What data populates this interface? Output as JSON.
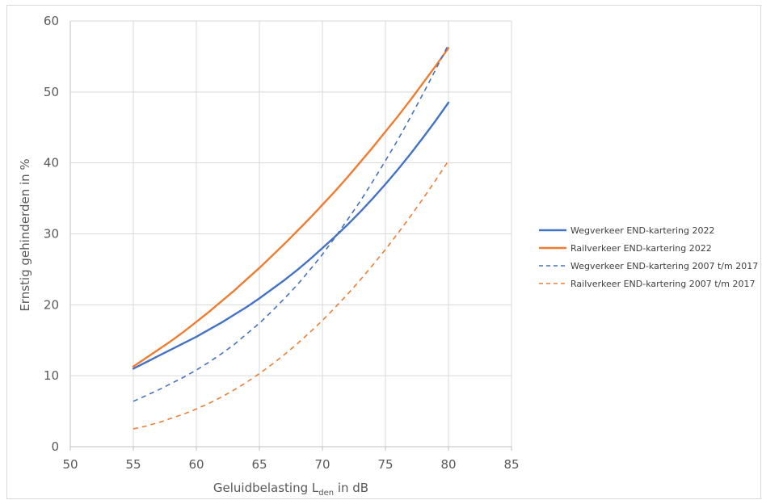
{
  "chart_data": {
    "type": "line",
    "title": "",
    "xlabel": {
      "main": "Geluidbelasting L",
      "subscript": "den",
      "suffix": " in dB"
    },
    "ylabel": "Ernstig gehinderden in %",
    "xlim": [
      50,
      85
    ],
    "ylim": [
      0,
      60
    ],
    "xticks": [
      50,
      55,
      60,
      65,
      70,
      75,
      80,
      85
    ],
    "yticks": [
      0,
      10,
      20,
      30,
      40,
      50,
      60
    ],
    "grid": "vertical-and-horizontal",
    "legend_position": "right",
    "x": [
      55,
      56,
      57,
      58,
      59,
      60,
      61,
      62,
      63,
      64,
      65,
      66,
      67,
      68,
      69,
      70,
      71,
      72,
      73,
      74,
      75,
      76,
      77,
      78,
      79,
      80
    ],
    "series": [
      {
        "name": "Wegverkeer END-kartering 2022",
        "color": "#4472c4",
        "dash": "solid",
        "values": [
          11.0,
          11.9,
          12.8,
          13.7,
          14.6,
          15.5,
          16.5,
          17.5,
          18.6,
          19.7,
          20.9,
          22.2,
          23.5,
          24.9,
          26.4,
          28.0,
          29.6,
          31.3,
          33.1,
          35.0,
          37.0,
          39.1,
          41.3,
          43.6,
          46.0,
          48.5
        ]
      },
      {
        "name": "Railverkeer END-kartering 2022",
        "color": "#ed7d31",
        "dash": "solid",
        "values": [
          11.3,
          12.5,
          13.7,
          14.9,
          16.2,
          17.6,
          19.0,
          20.5,
          22.0,
          23.6,
          25.2,
          26.9,
          28.6,
          30.4,
          32.2,
          34.1,
          36.0,
          38.0,
          40.1,
          42.2,
          44.4,
          46.6,
          48.9,
          51.3,
          53.7,
          56.2
        ]
      },
      {
        "name": "Wegverkeer END-kartering 2007 t/m 2017",
        "color": "#4472c4",
        "dash": "dashed",
        "values": [
          6.4,
          7.2,
          8.0,
          8.9,
          9.8,
          10.8,
          11.9,
          13.1,
          14.4,
          15.9,
          17.4,
          19.1,
          20.9,
          22.8,
          24.9,
          27.1,
          29.5,
          32.0,
          34.6,
          37.4,
          40.3,
          43.3,
          46.5,
          49.8,
          53.2,
          56.7
        ]
      },
      {
        "name": "Railverkeer END-kartering 2007 t/m 2017",
        "color": "#ed7d31",
        "dash": "dashed",
        "values": [
          2.5,
          2.9,
          3.4,
          4.0,
          4.6,
          5.3,
          6.1,
          7.0,
          8.0,
          9.1,
          10.3,
          11.6,
          13.0,
          14.5,
          16.1,
          17.8,
          19.6,
          21.5,
          23.5,
          25.6,
          27.8,
          30.1,
          32.5,
          35.0,
          37.6,
          40.3
        ]
      }
    ]
  }
}
